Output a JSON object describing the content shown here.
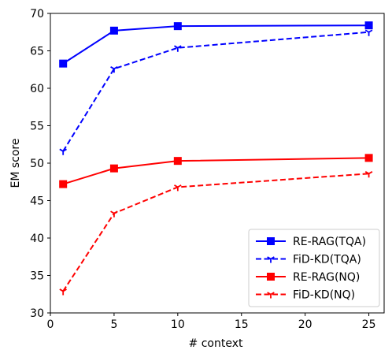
{
  "chart_data": {
    "type": "line",
    "title": "",
    "xlabel": "# context",
    "ylabel": "EM score",
    "xlim": [
      0,
      26.2
    ],
    "ylim": [
      30,
      70
    ],
    "x_ticks": [
      0,
      5,
      10,
      15,
      20,
      25
    ],
    "y_ticks": [
      30,
      35,
      40,
      45,
      50,
      55,
      60,
      65,
      70
    ],
    "grid": false,
    "legend_position": "lower-right",
    "series": [
      {
        "name": "RE-RAG(TQA)",
        "color": "#0000ff",
        "linestyle": "solid",
        "marker": "square",
        "x": [
          1,
          5,
          10,
          25
        ],
        "y": [
          63.3,
          67.7,
          68.3,
          68.4
        ]
      },
      {
        "name": "FiD-KD(TQA)",
        "color": "#0000ff",
        "linestyle": "dashed",
        "marker": "tri-down",
        "x": [
          1,
          5,
          10,
          25
        ],
        "y": [
          51.6,
          62.6,
          65.4,
          67.5
        ]
      },
      {
        "name": "RE-RAG(NQ)",
        "color": "#ff0000",
        "linestyle": "solid",
        "marker": "square",
        "x": [
          1,
          5,
          10,
          25
        ],
        "y": [
          47.2,
          49.3,
          50.3,
          50.7
        ]
      },
      {
        "name": "FiD-KD(NQ)",
        "color": "#ff0000",
        "linestyle": "dashed",
        "marker": "tri-down",
        "x": [
          1,
          5,
          10,
          25
        ],
        "y": [
          32.9,
          43.3,
          46.8,
          48.6
        ]
      }
    ]
  }
}
